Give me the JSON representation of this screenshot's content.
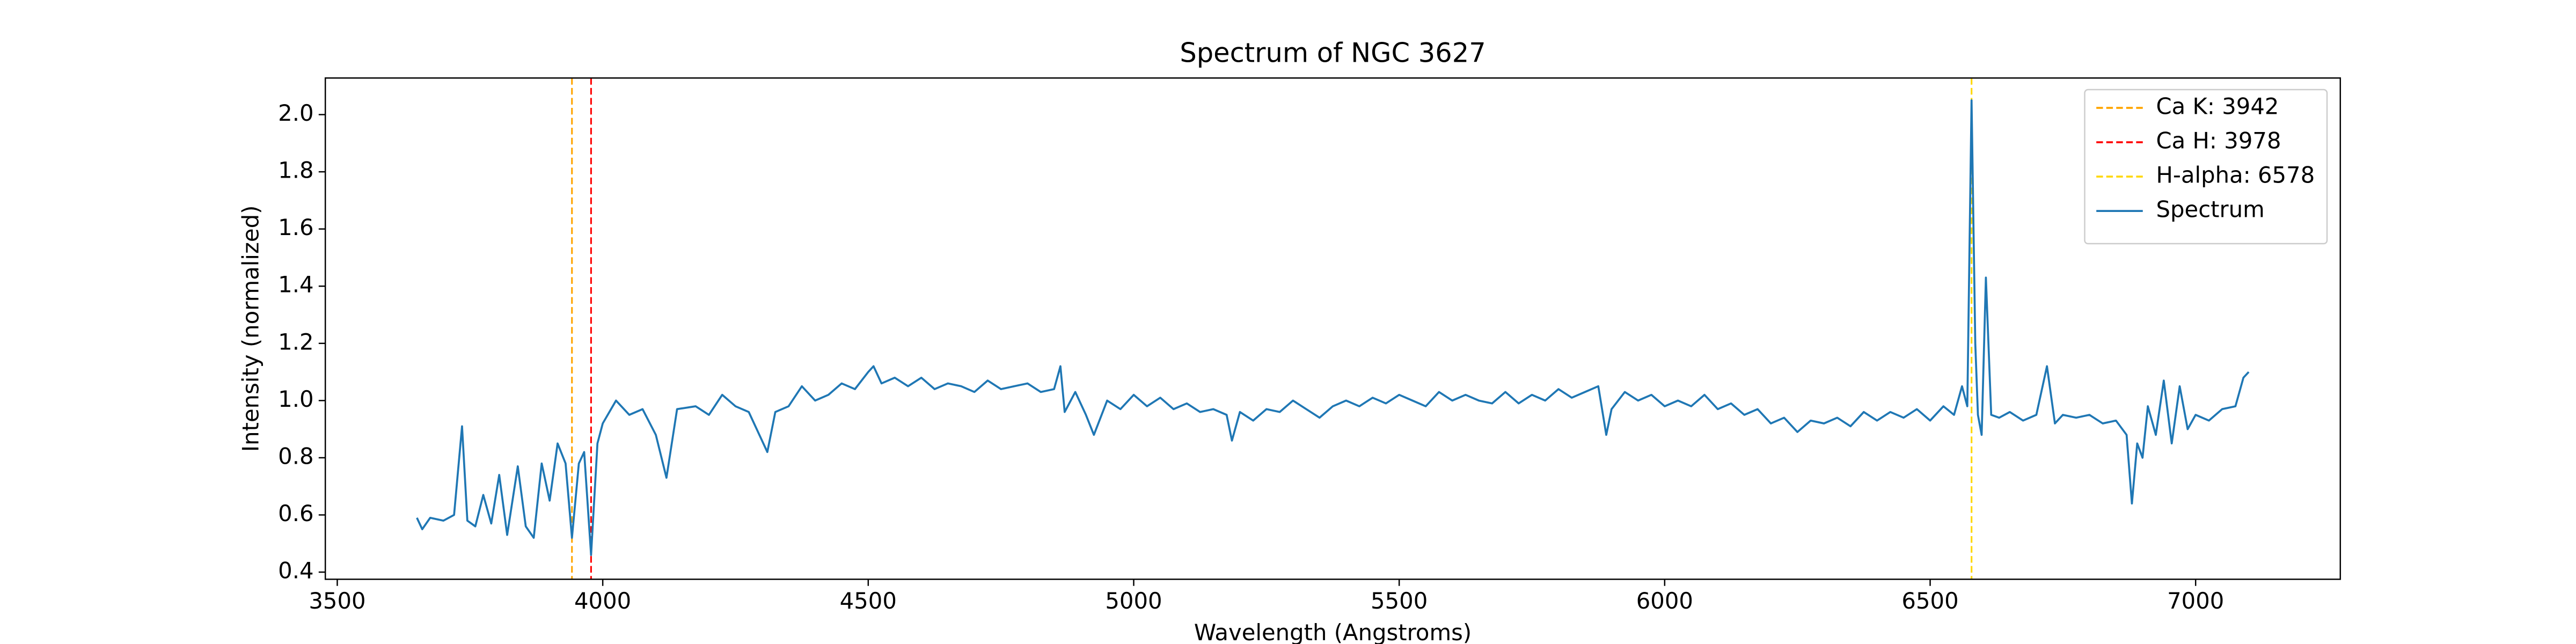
{
  "chart_data": {
    "type": "line",
    "title": "Spectrum of NGC 3627",
    "xlabel": "Wavelength (Angstroms)",
    "ylabel": "Intensity (normalized)",
    "x": [
      3650,
      3660,
      3675,
      3700,
      3720,
      3735,
      3745,
      3760,
      3775,
      3790,
      3805,
      3820,
      3840,
      3855,
      3870,
      3885,
      3900,
      3915,
      3930,
      3942,
      3955,
      3965,
      3978,
      3990,
      4000,
      4025,
      4050,
      4075,
      4100,
      4120,
      4140,
      4175,
      4200,
      4225,
      4250,
      4275,
      4300,
      4310,
      4325,
      4350,
      4375,
      4400,
      4425,
      4450,
      4475,
      4500,
      4510,
      4525,
      4550,
      4575,
      4600,
      4625,
      4650,
      4675,
      4700,
      4725,
      4750,
      4775,
      4800,
      4825,
      4850,
      4862,
      4870,
      4890,
      4910,
      4925,
      4950,
      4975,
      5000,
      5025,
      5050,
      5075,
      5100,
      5125,
      5150,
      5175,
      5185,
      5200,
      5225,
      5250,
      5275,
      5300,
      5325,
      5350,
      5375,
      5400,
      5425,
      5450,
      5475,
      5500,
      5525,
      5550,
      5575,
      5600,
      5625,
      5650,
      5675,
      5700,
      5725,
      5750,
      5775,
      5800,
      5825,
      5850,
      5875,
      5890,
      5900,
      5925,
      5950,
      5975,
      6000,
      6025,
      6050,
      6075,
      6100,
      6125,
      6150,
      6175,
      6200,
      6225,
      6250,
      6275,
      6300,
      6325,
      6350,
      6375,
      6400,
      6425,
      6450,
      6475,
      6500,
      6525,
      6545,
      6560,
      6570,
      6578,
      6585,
      6590,
      6597,
      6605,
      6615,
      6630,
      6650,
      6675,
      6700,
      6720,
      6735,
      6750,
      6775,
      6800,
      6825,
      6850,
      6870,
      6880,
      6890,
      6900,
      6910,
      6925,
      6940,
      6955,
      6970,
      6985,
      7000,
      7025,
      7050,
      7075,
      7090,
      7100
    ],
    "series": [
      {
        "name": "Spectrum",
        "color": "#1f77b4",
        "values": [
          0.59,
          0.55,
          0.59,
          0.58,
          0.6,
          0.91,
          0.58,
          0.56,
          0.67,
          0.57,
          0.74,
          0.53,
          0.77,
          0.56,
          0.52,
          0.78,
          0.65,
          0.85,
          0.78,
          0.52,
          0.78,
          0.82,
          0.46,
          0.85,
          0.92,
          1.0,
          0.95,
          0.97,
          0.88,
          0.73,
          0.97,
          0.98,
          0.95,
          1.02,
          0.98,
          0.96,
          0.86,
          0.82,
          0.96,
          0.98,
          1.05,
          1.0,
          1.02,
          1.06,
          1.04,
          1.1,
          1.12,
          1.06,
          1.08,
          1.05,
          1.08,
          1.04,
          1.06,
          1.05,
          1.03,
          1.07,
          1.04,
          1.05,
          1.06,
          1.03,
          1.04,
          1.12,
          0.96,
          1.03,
          0.95,
          0.88,
          1.0,
          0.97,
          1.02,
          0.98,
          1.01,
          0.97,
          0.99,
          0.96,
          0.97,
          0.95,
          0.86,
          0.96,
          0.93,
          0.97,
          0.96,
          1.0,
          0.97,
          0.94,
          0.98,
          1.0,
          0.98,
          1.01,
          0.99,
          1.02,
          1.0,
          0.98,
          1.03,
          1.0,
          1.02,
          1.0,
          0.99,
          1.03,
          0.99,
          1.02,
          1.0,
          1.04,
          1.01,
          1.03,
          1.05,
          0.88,
          0.97,
          1.03,
          1.0,
          1.02,
          0.98,
          1.0,
          0.98,
          1.02,
          0.97,
          0.99,
          0.95,
          0.97,
          0.92,
          0.94,
          0.89,
          0.93,
          0.92,
          0.94,
          0.91,
          0.96,
          0.93,
          0.96,
          0.94,
          0.97,
          0.93,
          0.98,
          0.95,
          1.05,
          0.98,
          2.05,
          1.2,
          0.95,
          0.88,
          1.43,
          0.95,
          0.94,
          0.96,
          0.93,
          0.95,
          1.12,
          0.92,
          0.95,
          0.94,
          0.95,
          0.92,
          0.93,
          0.88,
          0.64,
          0.85,
          0.8,
          0.98,
          0.88,
          1.07,
          0.85,
          1.05,
          0.9,
          0.95,
          0.93,
          0.97,
          0.98,
          1.08,
          1.1
        ]
      }
    ],
    "vlines": [
      {
        "name": "Ca K: 3942",
        "value": 3942,
        "color": "#ffa500"
      },
      {
        "name": "Ca H: 3978",
        "value": 3978,
        "color": "#ff0000"
      },
      {
        "name": "H-alpha: 6578",
        "value": 6578,
        "color": "#ffd700"
      }
    ],
    "xlim": [
      3477.5,
      7272.5
    ],
    "ylim": [
      0.375,
      2.128
    ],
    "xticks": [
      3500,
      4000,
      4500,
      5000,
      5500,
      6000,
      6500,
      7000
    ],
    "yticks": [
      0.4,
      0.6,
      0.8,
      {
        "value": 1,
        "label": "1.0"
      },
      1.2,
      1.4,
      1.6,
      1.8,
      {
        "value": 2,
        "label": "2.0"
      }
    ],
    "legend": "upper right"
  }
}
